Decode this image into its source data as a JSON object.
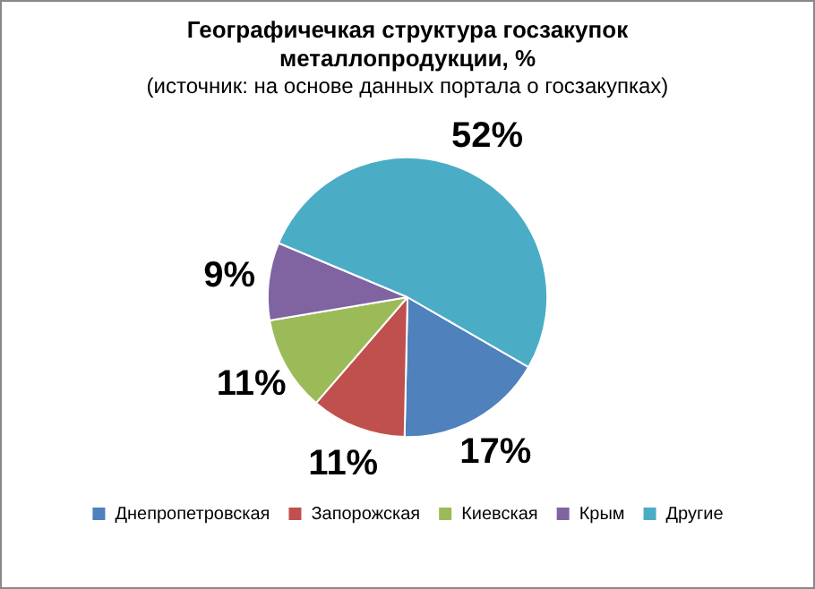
{
  "chart_data": {
    "type": "pie",
    "title": "Географичечкая структура госзакупок металлопродукции, %",
    "subtitle": "(источник: на основе данных портала о госзакупках)",
    "categories": [
      "Днепропетровская",
      "Запорожская",
      "Киевская",
      "Крым",
      "Другие"
    ],
    "values": [
      17,
      11,
      11,
      9,
      52
    ],
    "colors": [
      "#4f81bd",
      "#c0504d",
      "#9bbb59",
      "#8064a2",
      "#4bacc6"
    ],
    "value_labels": [
      "17%",
      "11%",
      "11%",
      "9%",
      "52%"
    ],
    "legend": "bottom"
  }
}
